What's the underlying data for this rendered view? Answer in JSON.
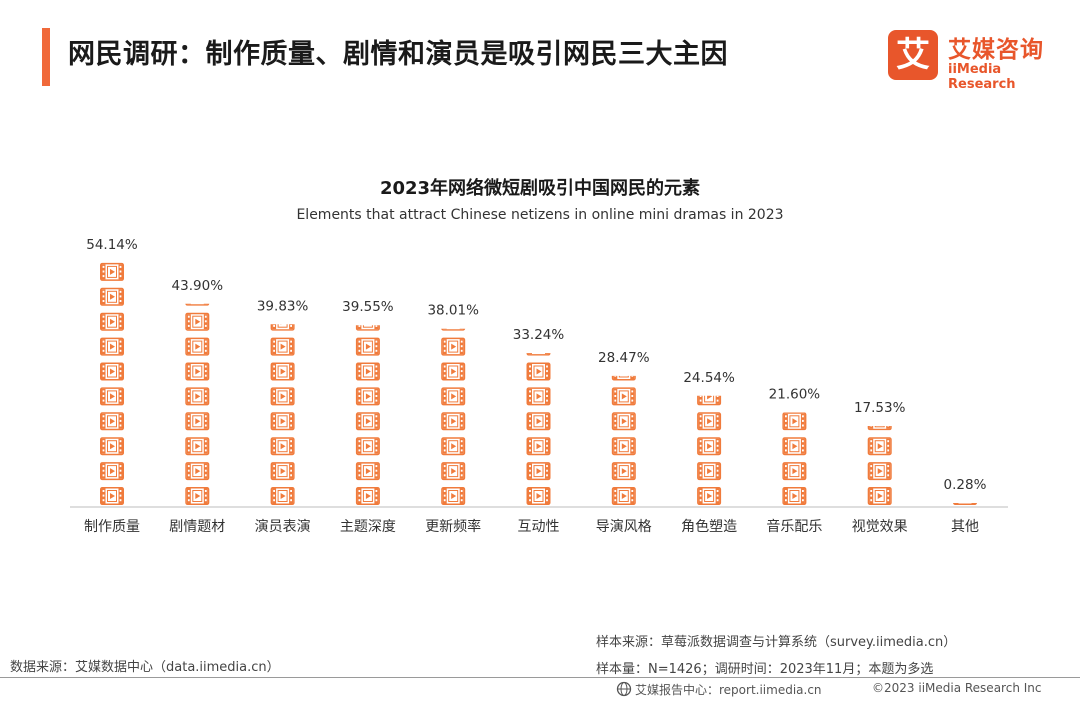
{
  "header": {
    "title": "网民调研：制作质量、剧情和演员是吸引网民三大主因",
    "accent_color": "#f0693a"
  },
  "logo": {
    "mark": "艾",
    "name_cn": "艾媒咨询",
    "name_en": "iiMedia Research",
    "color": "#e8562b"
  },
  "chart_data": {
    "type": "bar",
    "title": "2023年网络微短剧吸引中国网民的元素",
    "subtitle": "Elements that attract Chinese netizens in online mini dramas in 2023",
    "categories": [
      "制作质量",
      "剧情题材",
      "演员表演",
      "主题深度",
      "更新频率",
      "互动性",
      "导演风格",
      "角色塑造",
      "音乐配乐",
      "视觉效果",
      "其他"
    ],
    "values": [
      54.14,
      43.9,
      39.83,
      39.55,
      38.01,
      33.24,
      28.47,
      24.54,
      21.6,
      17.53,
      0.28
    ],
    "value_labels": [
      "54.14%",
      "43.90%",
      "39.83%",
      "39.55%",
      "38.01%",
      "33.24%",
      "28.47%",
      "24.54%",
      "21.60%",
      "17.53%",
      "0.28%"
    ],
    "icon": "film-play-icon",
    "icon_color": "#f07b3c",
    "ylim": [
      0,
      54.14
    ]
  },
  "footer": {
    "data_source": "数据来源：艾媒数据中心（data.iimedia.cn）",
    "sample_source": "样本来源：草莓派数据调查与计算系统（survey.iimedia.cn）",
    "sample_size": "样本量：N=1426；调研时间：2023年11月；本题为多选",
    "report_center": "艾媒报告中心：report.iimedia.cn",
    "copyright": "©2023  iiMedia Research  Inc"
  }
}
